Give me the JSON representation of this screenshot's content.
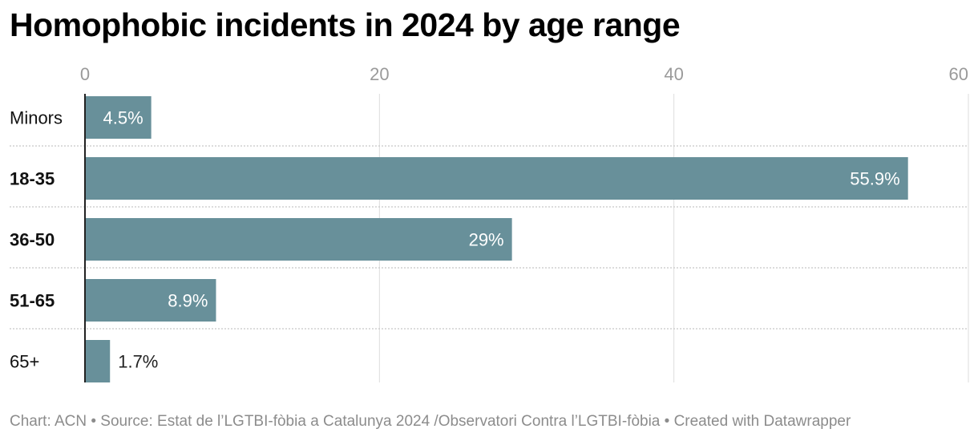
{
  "chart_data": {
    "type": "bar",
    "orientation": "horizontal",
    "title": "Homophobic incidents in 2024 by age range",
    "categories": [
      "Minors",
      "18-35",
      "36-50",
      "51-65",
      "65+"
    ],
    "bold_categories": [
      "18-35",
      "36-50",
      "51-65"
    ],
    "values": [
      4.5,
      55.9,
      29,
      8.9,
      1.7
    ],
    "value_labels": [
      "4.5%",
      "55.9%",
      "29%",
      "8.9%",
      "1.7%"
    ],
    "xlim": [
      0,
      60
    ],
    "x_ticks": [
      0,
      20,
      40,
      60
    ],
    "x_tick_labels": [
      "0",
      "20",
      "40",
      "60"
    ],
    "grid": true,
    "xlabel": "",
    "ylabel": ""
  },
  "colors": {
    "bar": "#68909a",
    "grid": "#dddddd",
    "tick": "#9a9a9a",
    "label_inside": "#ffffff",
    "label_outside": "#222222"
  },
  "footer": {
    "text": "Chart: ACN • Source: Estat de l’LGTBI-fòbia a Catalunya 2024 /Observatori Contra l’LGTBI-fòbia • Created with Datawrapper"
  }
}
